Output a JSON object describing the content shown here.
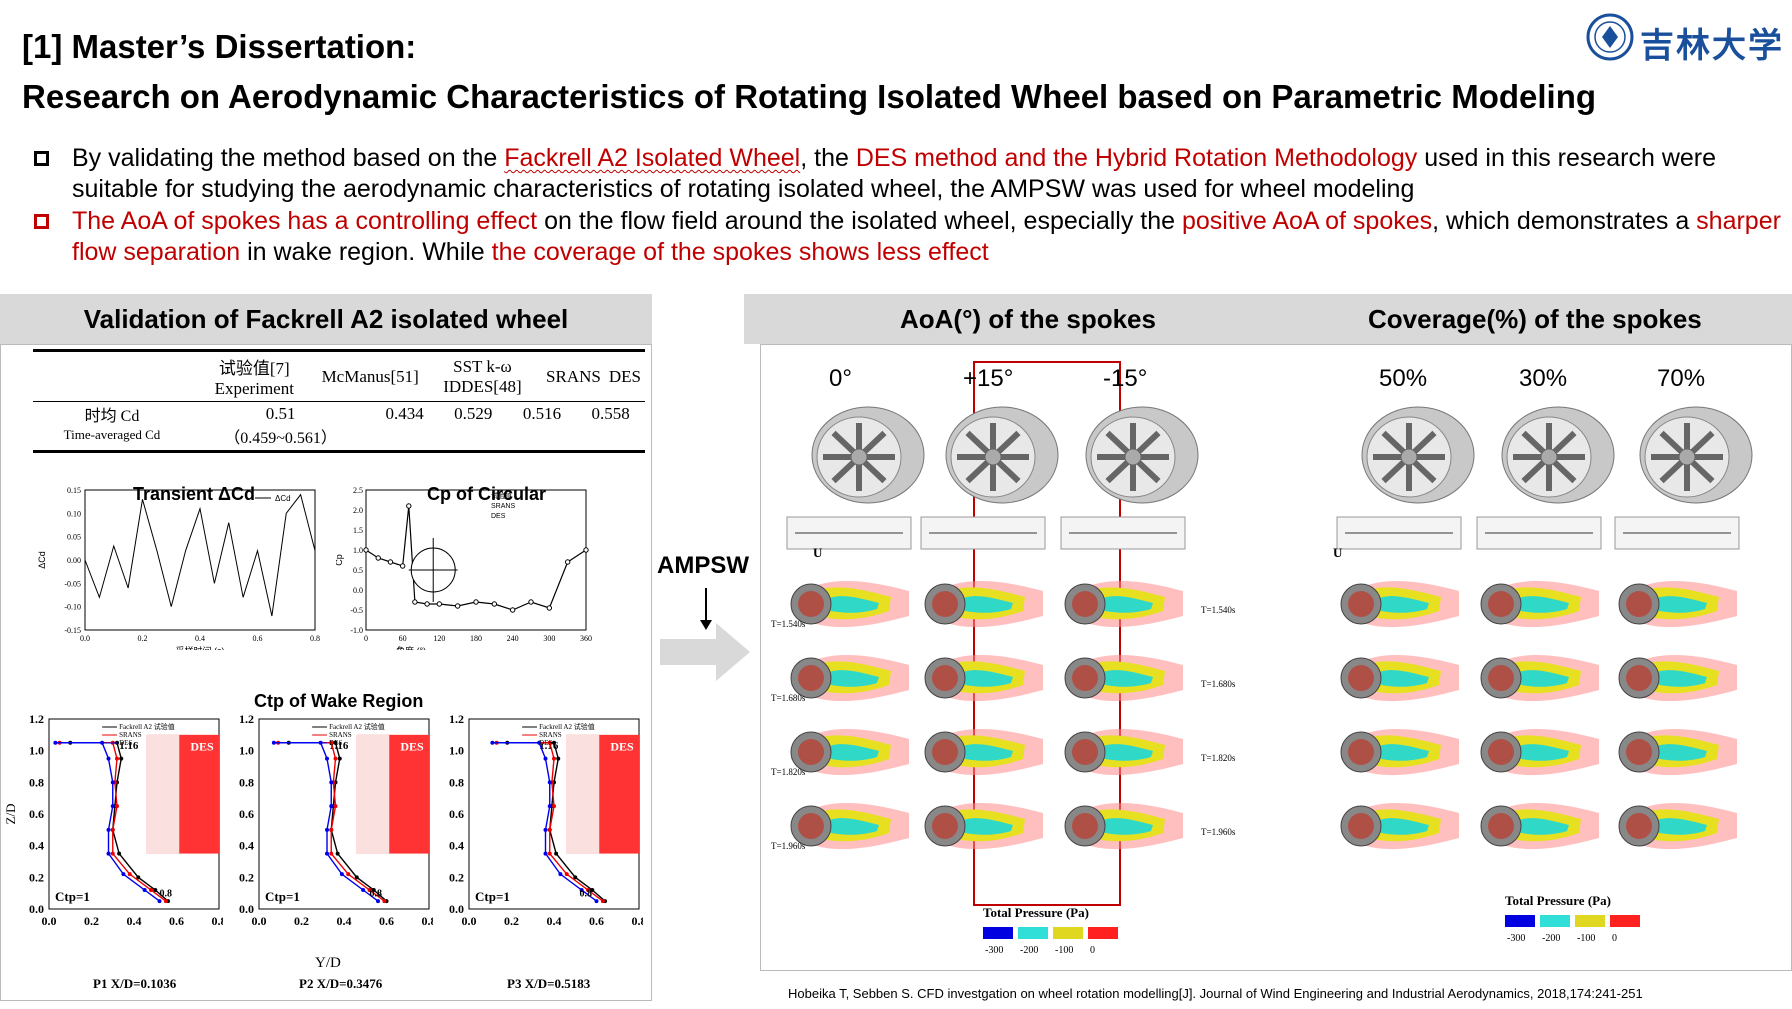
{
  "header": {
    "title_line1": "[1] Master’s Dissertation:",
    "title_line2": "Research on Aerodynamic Characteristics of Rotating Isolated Wheel based on Parametric Modeling",
    "logo_text": "吉林大学"
  },
  "bullets": [
    {
      "p1": "By validating the method based on the ",
      "p2": "Fackrell A2 Isolated Wheel",
      "p3": ", the ",
      "p4": "DES method and the Hybrid Rotation Methodology",
      "p5": " used in this research were suitable for studying the aerodynamic characteristics of rotating isolated wheel, the AMPSW was used for wheel modeling"
    },
    {
      "p1": "The AoA of spokes has a controlling effect",
      "p2": " on the flow field around the isolated wheel, especially the ",
      "p3": "positive AoA of spokes",
      "p4": ", which demonstrates a ",
      "p5": "sharper flow separation",
      "p6": " in wake region. While ",
      "p7": "the coverage of the spokes shows less effect"
    }
  ],
  "left_panel": {
    "heading": "Validation of Fackrell A2 isolated wheel",
    "table": {
      "headers": [
        "试验值[7] Experiment",
        "McManus[51]",
        "SST k-ω IDDES[48]",
        "SRANS",
        "DES"
      ],
      "row_label_cn": "时均 Cd",
      "row_label_en": "Time-averaged Cd",
      "values": [
        "0.51",
        "0.434",
        "0.529",
        "0.516",
        "0.558"
      ],
      "range": "（0.459~0.561）"
    },
    "chart_transient_title": "Transient ΔCd",
    "chart_cp_title": "Cp of Circular",
    "chart_ctp_title": "Ctp of Wake Region",
    "p_labels": [
      "P1 X/D=0.1036",
      "P2 X/D=0.3476",
      "P3 X/D=0.5183"
    ],
    "ctp_label": "Ctp=1",
    "yd_label": "Y/D",
    "zd_label": "Z/D",
    "des_label": "DES",
    "val_116": "1.16",
    "ctp_legend": [
      "Fackrell A2 试验值",
      "SRANS",
      "DES"
    ]
  },
  "arrow_label": "AMPSW",
  "right_panel": {
    "heading_aoa": "AoA(°) of the spokes",
    "heading_cov": "Coverage(%) of the spokes",
    "aoa_cols": [
      "0°",
      "+15°",
      "-15°"
    ],
    "cov_cols": [
      "50%",
      "30%",
      "70%"
    ],
    "time_labels": [
      "T=1.540s",
      "T=1.680s",
      "T=1.820s",
      "T=1.960s"
    ],
    "legend_title": "Total Pressure (Pa)",
    "legend_ticks": [
      "-300",
      "-200",
      "-100",
      "0"
    ],
    "legend_colors": [
      "#0000e0",
      "#30e0d8",
      "#e0d820",
      "#ff2020"
    ]
  },
  "citation": "Hobeika T, Sebben S. CFD investgation on wheel rotation modelling[J]. Journal of Wind Engineering and Industrial Aerodynamics, 2018,174:241-251",
  "chart_data": [
    {
      "type": "line",
      "title": "Transient ΔCd",
      "xlabel": "采样时间 (s)",
      "ylabel": "ΔCd",
      "xlim": [
        0,
        0.8
      ],
      "ylim": [
        -0.15,
        0.15
      ],
      "x_ticks": [
        "0.0",
        "0.2",
        "0.4",
        "0.6",
        "0.8"
      ],
      "y_ticks": [
        "0.15",
        "0.10",
        "0.05",
        "0.00",
        "-0.05",
        "-0.10",
        "-0.15"
      ],
      "legend": [
        "ΔCd"
      ],
      "x": [
        0.0,
        0.05,
        0.1,
        0.15,
        0.2,
        0.25,
        0.3,
        0.35,
        0.4,
        0.45,
        0.5,
        0.55,
        0.6,
        0.65,
        0.7,
        0.75,
        0.8
      ],
      "values": [
        0.0,
        -0.08,
        0.03,
        -0.06,
        0.13,
        0.02,
        -0.1,
        0.02,
        0.11,
        -0.05,
        0.08,
        -0.08,
        0.02,
        -0.12,
        0.1,
        0.14,
        0.02
      ]
    },
    {
      "type": "scatter",
      "title": "Cp of Circular",
      "xlabel": "角度 (°)",
      "ylabel": "Cp",
      "xlim": [
        0,
        360
      ],
      "ylim": [
        -1.0,
        2.5
      ],
      "x_ticks": [
        "0",
        "60",
        "120",
        "180",
        "240",
        "300",
        "360"
      ],
      "y_ticks": [
        "2.5",
        "2.0",
        "1.5",
        "1.0",
        "0.5",
        "0.0",
        "-0.5",
        "-1.0"
      ],
      "legend": [
        "试验值",
        "SRANS",
        "DES"
      ],
      "x": [
        0,
        20,
        40,
        60,
        70,
        80,
        100,
        120,
        150,
        180,
        210,
        240,
        270,
        300,
        330,
        360
      ],
      "values": [
        1.0,
        0.8,
        0.7,
        0.6,
        2.1,
        -0.3,
        -0.35,
        -0.35,
        -0.4,
        -0.3,
        -0.35,
        -0.5,
        -0.3,
        -0.45,
        0.7,
        1.0
      ]
    },
    {
      "type": "line",
      "title": "Ctp of Wake Region",
      "xlabel": "Y/D",
      "ylabel": "Z/D",
      "xlim": [
        0,
        0.8
      ],
      "ylim": [
        0,
        1.2
      ],
      "x_ticks": [
        "0.0",
        "0.2",
        "0.4",
        "0.6",
        "0.8"
      ],
      "y_ticks": [
        "0.0",
        "0.2",
        "0.4",
        "0.6",
        "0.8",
        "1.0",
        "1.2"
      ],
      "series": [
        {
          "name": "Fackrell A2 试验值",
          "x": [
            0.56,
            0.5,
            0.42,
            0.33,
            0.3,
            0.31,
            0.32,
            0.34,
            0.32,
            0.1
          ],
          "values": [
            0.05,
            0.12,
            0.2,
            0.35,
            0.5,
            0.65,
            0.8,
            0.95,
            1.05,
            1.05
          ]
        },
        {
          "name": "SRANS",
          "x": [
            0.55,
            0.48,
            0.38,
            0.3,
            0.3,
            0.32,
            0.31,
            0.32,
            0.3,
            0.05
          ],
          "values": [
            0.05,
            0.12,
            0.22,
            0.35,
            0.5,
            0.65,
            0.8,
            0.95,
            1.05,
            1.05
          ]
        },
        {
          "name": "DES",
          "x": [
            0.52,
            0.45,
            0.35,
            0.28,
            0.28,
            0.3,
            0.3,
            0.28,
            0.25,
            0.03
          ],
          "values": [
            0.05,
            0.12,
            0.22,
            0.35,
            0.5,
            0.65,
            0.8,
            0.95,
            1.05,
            1.05
          ]
        }
      ]
    }
  ]
}
